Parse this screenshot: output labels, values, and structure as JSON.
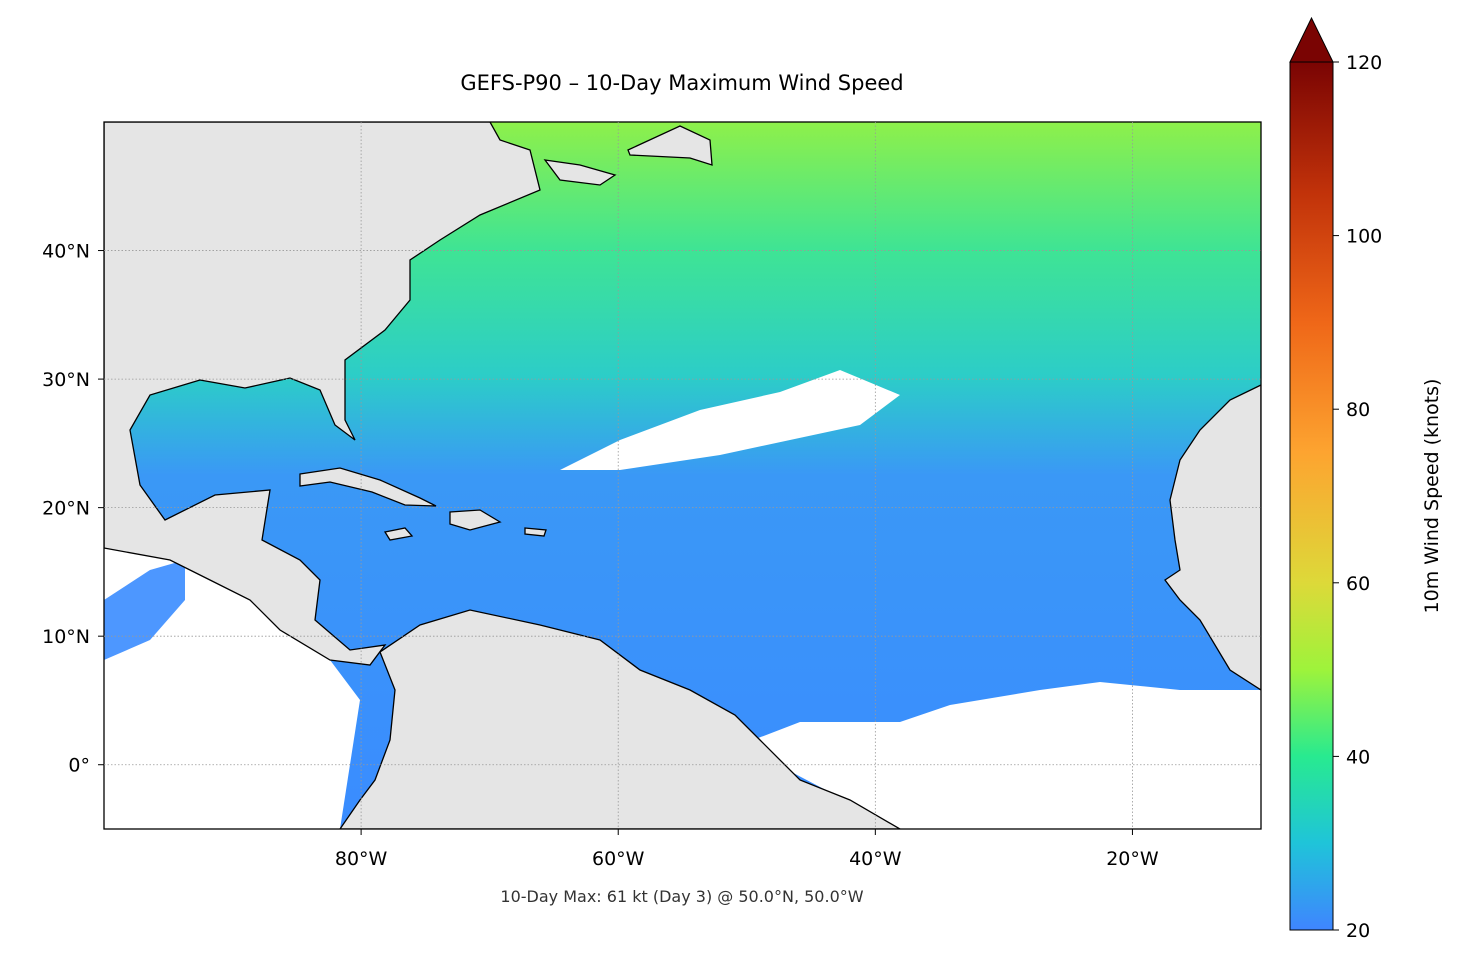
{
  "map": {
    "title": "GEFS-P90 – 10-Day Maximum Wind Speed",
    "annotation": "10-Day Max: 61 kt (Day 3) @ 50.0°N, 50.0°W",
    "xlim": [
      -100,
      -10
    ],
    "ylim": [
      -5,
      50
    ],
    "xticks": [
      {
        "value": -80,
        "label": "80°W"
      },
      {
        "value": -60,
        "label": "60°W"
      },
      {
        "value": -40,
        "label": "40°W"
      },
      {
        "value": -20,
        "label": "20°W"
      }
    ],
    "yticks": [
      {
        "value": 0,
        "label": "0°"
      },
      {
        "value": 10,
        "label": "10°N"
      },
      {
        "value": 20,
        "label": "20°N"
      },
      {
        "value": 30,
        "label": "30°N"
      },
      {
        "value": 40,
        "label": "40°N"
      }
    ],
    "grid": true,
    "colorbar": {
      "label": "10m Wind Speed (knots)",
      "lim": [
        20,
        120
      ],
      "ticks": [
        20,
        40,
        60,
        80,
        100,
        120
      ],
      "extend": "max"
    }
  }
}
